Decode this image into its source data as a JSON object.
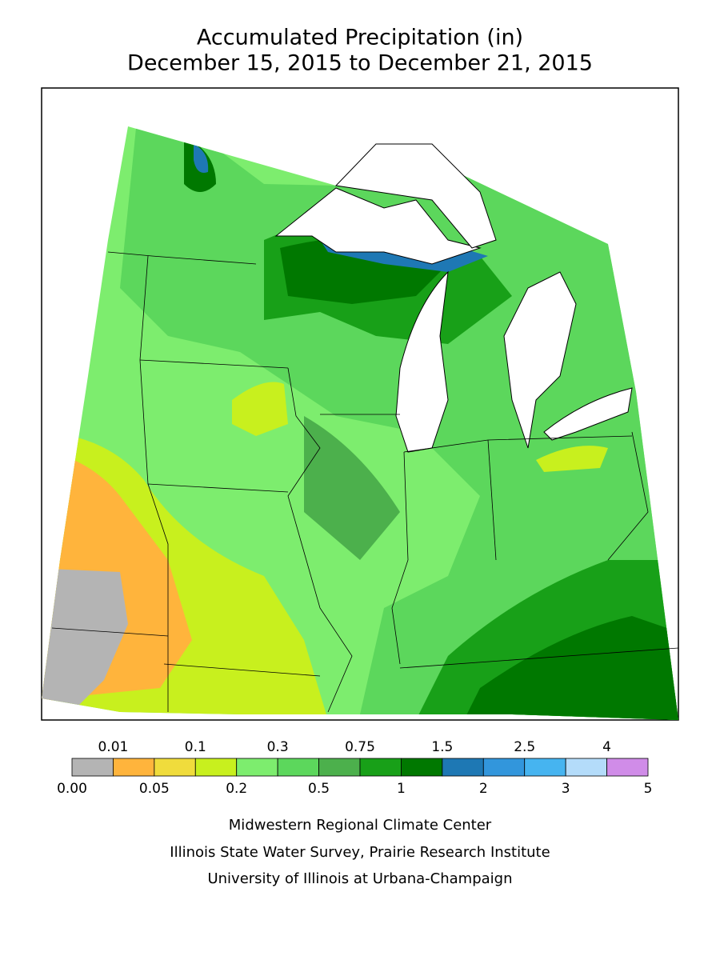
{
  "header": {
    "title": "Accumulated Precipitation (in)",
    "subtitle": "December 15, 2015 to December 21, 2015"
  },
  "legend": {
    "top_labels": [
      "0.01",
      "0.1",
      "0.3",
      "0.75",
      "1.5",
      "2.5",
      "4"
    ],
    "bottom_labels": [
      "0.00",
      "0.05",
      "0.2",
      "0.5",
      "1",
      "2",
      "3",
      "5"
    ],
    "colors": [
      "#b4b4b4",
      "#ffb43c",
      "#f0dc3c",
      "#c8f01e",
      "#7ded6e",
      "#5cd75c",
      "#4cb04c",
      "#18a018",
      "#007800",
      "#1e78b4",
      "#3296dc",
      "#46b4f0",
      "#b4dcfa",
      "#d08ce8"
    ]
  },
  "footer": {
    "lines": [
      "Midwestern Regional Climate Center",
      "Illinois State Water Survey, Prairie Research Institute",
      "University of Illinois at Urbana-Champaign"
    ]
  }
}
